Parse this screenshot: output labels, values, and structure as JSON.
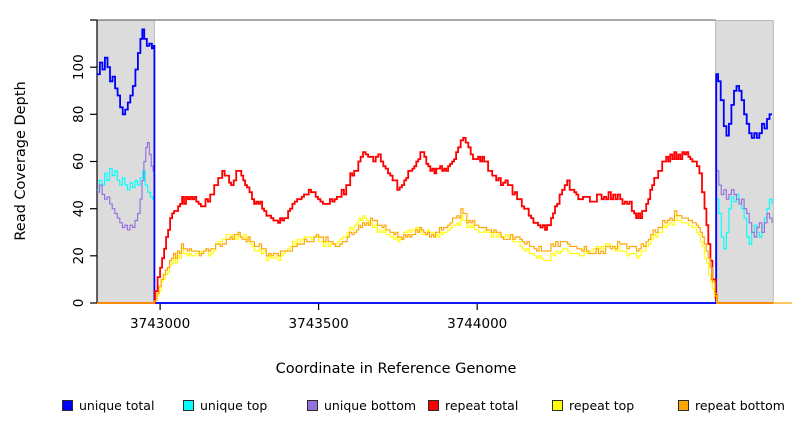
{
  "axes_titles": {
    "y_title": "Read Coverage Depth",
    "x_title": "Coordinate in Reference Genome"
  },
  "chart_data": {
    "type": "line",
    "title": "",
    "xlabel": "Coordinate in Reference Genome",
    "ylabel": "Read Coverage Depth",
    "x_base": 3742000,
    "xlim": [
      3742801,
      3744993
    ],
    "ylim": [
      0,
      120
    ],
    "grid": false,
    "legend_position": "bottom",
    "x_ticks": [
      {
        "v": 3743000,
        "label": "3743000"
      },
      {
        "v": 3743500,
        "label": "3743500"
      },
      {
        "v": 3744000,
        "label": "3744000"
      }
    ],
    "y_ticks": [
      {
        "v": 0,
        "label": "0"
      },
      {
        "v": 20,
        "label": "20"
      },
      {
        "v": 40,
        "label": "40"
      },
      {
        "v": 60,
        "label": "60"
      },
      {
        "v": 80,
        "label": "80"
      },
      {
        "v": 100,
        "label": "100"
      },
      {
        "v": 120,
        "label": ""
      }
    ],
    "mask_fill": "#dcdcdc",
    "mask_border": "#b8b8b8",
    "mask_top_line": "#8c8c8c",
    "axis_color": "#000000",
    "masked_regions": [
      {
        "x0": 3742801,
        "x1": 3742982
      },
      {
        "x0": 3744752,
        "x1": 3744934
      }
    ],
    "series": [
      {
        "name": "unique total",
        "slug": "unique-total",
        "color": "#0000ff",
        "width": 1.8,
        "x_offsets": [
          801,
          810,
          818,
          826,
          834,
          842,
          850,
          858,
          866,
          874,
          882,
          890,
          898,
          906,
          914,
          922,
          930,
          938,
          944,
          950,
          958,
          966,
          974,
          980,
          982,
          2752,
          2754,
          2760,
          2768,
          2778,
          2786,
          2794,
          2802,
          2810,
          2818,
          2826,
          2834,
          2842,
          2850,
          2858,
          2866,
          2874,
          2882,
          2890,
          2898,
          2906,
          2914,
          2922,
          2930
        ],
        "y": [
          97,
          102,
          99,
          104,
          100,
          94,
          96,
          91,
          88,
          83,
          80,
          82,
          85,
          88,
          92,
          99,
          106,
          112,
          116,
          112,
          109,
          110,
          108,
          109,
          0,
          0,
          97,
          94,
          86,
          75,
          71,
          76,
          84,
          90,
          92,
          90,
          86,
          80,
          76,
          72,
          70,
          72,
          70,
          72,
          76,
          74,
          78,
          80,
          80
        ]
      },
      {
        "name": "unique top",
        "slug": "unique-top",
        "color": "#00ffff",
        "width": 1.15,
        "x_offsets": [
          801,
          809,
          817,
          825,
          833,
          841,
          849,
          857,
          865,
          873,
          881,
          889,
          897,
          905,
          913,
          921,
          929,
          937,
          945,
          953,
          961,
          969,
          977,
          981,
          982,
          2752,
          2754,
          2762,
          2770,
          2778,
          2786,
          2794,
          2802,
          2810,
          2818,
          2826,
          2834,
          2842,
          2850,
          2858,
          2866,
          2874,
          2882,
          2890,
          2898,
          2906,
          2914,
          2922,
          2930
        ],
        "y": [
          48,
          52,
          50,
          55,
          52,
          57,
          54,
          56,
          52,
          50,
          53,
          50,
          48,
          51,
          49,
          52,
          50,
          53,
          56,
          50,
          47,
          45,
          44,
          45,
          0,
          0,
          44,
          38,
          28,
          23,
          30,
          40,
          45,
          43,
          46,
          42,
          40,
          36,
          28,
          25,
          30,
          33,
          30,
          28,
          32,
          36,
          40,
          44,
          42
        ]
      },
      {
        "name": "unique bottom",
        "slug": "unique-bottom",
        "color": "#9370db",
        "width": 1.15,
        "x_offsets": [
          801,
          809,
          817,
          825,
          833,
          841,
          849,
          857,
          865,
          873,
          881,
          889,
          897,
          905,
          913,
          921,
          929,
          937,
          943,
          949,
          955,
          960,
          966,
          972,
          978,
          981,
          982,
          2752,
          2754,
          2762,
          2770,
          2778,
          2786,
          2794,
          2802,
          2810,
          2818,
          2826,
          2834,
          2842,
          2850,
          2858,
          2866,
          2874,
          2882,
          2890,
          2898,
          2906,
          2914,
          2922,
          2930
        ],
        "y": [
          47,
          50,
          46,
          44,
          45,
          42,
          40,
          38,
          36,
          34,
          32,
          33,
          31,
          33,
          32,
          35,
          38,
          44,
          52,
          60,
          66,
          68,
          63,
          58,
          56,
          55,
          0,
          0,
          56,
          50,
          46,
          48,
          44,
          46,
          48,
          46,
          44,
          42,
          44,
          40,
          38,
          34,
          30,
          28,
          32,
          34,
          30,
          34,
          38,
          36,
          34
        ]
      },
      {
        "name": "repeat total",
        "slug": "repeat-total",
        "color": "#ff0000",
        "width": 1.8,
        "x_offsets": [
          801,
          955,
          975,
          984,
          1000,
          1019,
          1038,
          1063,
          1088,
          1114,
          1136,
          1158,
          1177,
          1196,
          1211,
          1224,
          1240,
          1256,
          1274,
          1290,
          1309,
          1328,
          1350,
          1372,
          1391,
          1410,
          1432,
          1454,
          1476,
          1498,
          1521,
          1543,
          1565,
          1587,
          1606,
          1625,
          1640,
          1656,
          1672,
          1688,
          1704,
          1726,
          1748,
          1770,
          1789,
          1808,
          1827,
          1846,
          1865,
          1883,
          1902,
          1921,
          1940,
          1956,
          1972,
          1987,
          2003,
          2022,
          2041,
          2060,
          2082,
          2104,
          2126,
          2148,
          2170,
          2192,
          2214,
          2233,
          2252,
          2268,
          2284,
          2300,
          2319,
          2341,
          2363,
          2385,
          2407,
          2429,
          2451,
          2473,
          2495,
          2514,
          2533,
          2552,
          2571,
          2590,
          2609,
          2628,
          2647,
          2666,
          2685,
          2701,
          2717,
          2729,
          2742,
          2752,
          2756,
          2934
        ],
        "y": [
          0,
          0,
          0,
          5,
          15,
          28,
          38,
          42,
          44,
          43,
          41,
          46,
          50,
          56,
          54,
          50,
          56,
          54,
          49,
          44,
          42,
          39,
          36,
          34,
          36,
          40,
          44,
          46,
          47,
          44,
          42,
          43,
          45,
          50,
          54,
          60,
          64,
          62,
          60,
          63,
          58,
          54,
          48,
          52,
          56,
          60,
          64,
          58,
          55,
          58,
          56,
          60,
          66,
          70,
          66,
          61,
          62,
          60,
          56,
          52,
          51,
          50,
          44,
          40,
          36,
          33,
          31,
          36,
          42,
          48,
          52,
          48,
          44,
          45,
          43,
          46,
          44,
          46,
          44,
          42,
          38,
          36,
          42,
          50,
          56,
          60,
          63,
          61,
          64,
          62,
          60,
          55,
          40,
          25,
          10,
          2,
          0,
          0
        ]
      },
      {
        "name": "repeat top",
        "slug": "repeat-top",
        "color": "#ffff00",
        "width": 1.15,
        "x_offsets": [
          801,
          960,
          975,
          990,
          1010,
          1030,
          1055,
          1080,
          1105,
          1130,
          1160,
          1190,
          1215,
          1240,
          1265,
          1290,
          1320,
          1350,
          1380,
          1410,
          1440,
          1470,
          1500,
          1530,
          1560,
          1590,
          1620,
          1645,
          1670,
          1700,
          1725,
          1750,
          1775,
          1800,
          1825,
          1850,
          1875,
          1900,
          1930,
          1955,
          1980,
          2005,
          2030,
          2060,
          2090,
          2120,
          2150,
          2180,
          2210,
          2240,
          2270,
          2300,
          2330,
          2360,
          2390,
          2420,
          2450,
          2480,
          2510,
          2540,
          2570,
          2600,
          2630,
          2660,
          2685,
          2710,
          2730,
          2748,
          2756,
          2934
        ],
        "y": [
          0,
          0,
          0,
          3,
          10,
          16,
          20,
          21,
          20,
          22,
          21,
          26,
          29,
          27,
          29,
          24,
          21,
          19,
          20,
          24,
          26,
          28,
          26,
          24,
          26,
          30,
          34,
          36,
          32,
          30,
          28,
          26,
          30,
          31,
          29,
          30,
          28,
          30,
          33,
          35,
          32,
          30,
          30,
          28,
          29,
          26,
          22,
          20,
          18,
          20,
          23,
          21,
          20,
          22,
          24,
          24,
          22,
          21,
          20,
          25,
          30,
          33,
          35,
          34,
          32,
          24,
          12,
          3,
          0,
          0
        ]
      },
      {
        "name": "repeat bottom",
        "slug": "repeat-bottom",
        "color": "#ffa500",
        "width": 1.15,
        "x_offsets": [
          801,
          960,
          975,
          990,
          1010,
          1030,
          1055,
          1080,
          1105,
          1130,
          1160,
          1190,
          1215,
          1240,
          1265,
          1290,
          1320,
          1350,
          1380,
          1410,
          1440,
          1470,
          1500,
          1530,
          1560,
          1590,
          1620,
          1645,
          1670,
          1700,
          1725,
          1750,
          1775,
          1800,
          1825,
          1850,
          1875,
          1900,
          1930,
          1955,
          1980,
          2005,
          2030,
          2060,
          2090,
          2120,
          2150,
          2180,
          2210,
          2240,
          2270,
          2300,
          2330,
          2360,
          2390,
          2420,
          2450,
          2480,
          2510,
          2540,
          2570,
          2600,
          2630,
          2660,
          2685,
          2710,
          2735,
          2750,
          2758,
          2993
        ],
        "y": [
          0,
          0,
          0,
          4,
          12,
          18,
          22,
          23,
          22,
          21,
          23,
          24,
          27,
          29,
          27,
          26,
          23,
          20,
          22,
          22,
          25,
          26,
          28,
          26,
          24,
          28,
          31,
          33,
          35,
          32,
          30,
          28,
          28,
          29,
          31,
          28,
          30,
          32,
          36,
          38,
          34,
          32,
          31,
          30,
          27,
          28,
          25,
          23,
          22,
          24,
          26,
          24,
          22,
          21,
          22,
          23,
          25,
          24,
          23,
          27,
          32,
          35,
          37,
          36,
          34,
          28,
          15,
          4,
          0,
          0
        ]
      }
    ]
  }
}
